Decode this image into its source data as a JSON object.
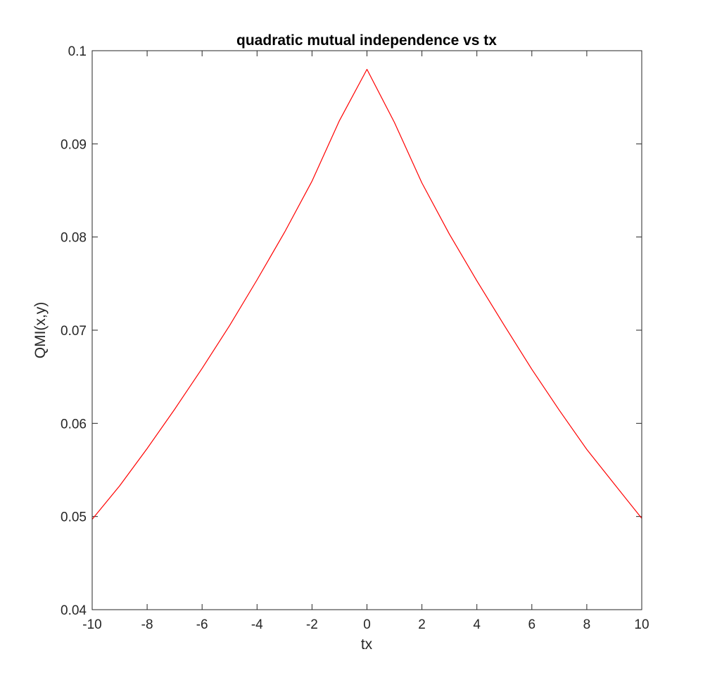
{
  "chart_data": {
    "type": "line",
    "title": "quadratic mutual independence vs tx",
    "xlabel": "tx",
    "ylabel": "QMI(x,y)",
    "xlim": [
      -10,
      10
    ],
    "ylim": [
      0.04,
      0.1
    ],
    "xticks": [
      -10,
      -8,
      -6,
      -4,
      -2,
      0,
      2,
      4,
      6,
      8,
      10
    ],
    "xtick_labels": [
      "-10",
      "-8",
      "-6",
      "-4",
      "-2",
      "0",
      "2",
      "4",
      "6",
      "8",
      "10"
    ],
    "yticks": [
      0.04,
      0.05,
      0.06,
      0.07,
      0.08,
      0.09,
      0.1
    ],
    "ytick_labels": [
      "0.04",
      "0.05",
      "0.06",
      "0.07",
      "0.08",
      "0.09",
      "0.1"
    ],
    "grid": false,
    "series": [
      {
        "color": "#ff0000",
        "x": [
          -10,
          -9,
          -8,
          -7,
          -6,
          -5,
          -4,
          -3,
          -2,
          -1,
          0,
          1,
          2,
          3,
          4,
          5,
          6,
          7,
          8,
          9,
          10
        ],
        "y": [
          0.0497,
          0.0533,
          0.0573,
          0.0615,
          0.0659,
          0.0705,
          0.0754,
          0.0805,
          0.086,
          0.0925,
          0.098,
          0.0923,
          0.0858,
          0.0803,
          0.0753,
          0.0705,
          0.0658,
          0.0614,
          0.0572,
          0.0535,
          0.0498
        ]
      }
    ]
  }
}
